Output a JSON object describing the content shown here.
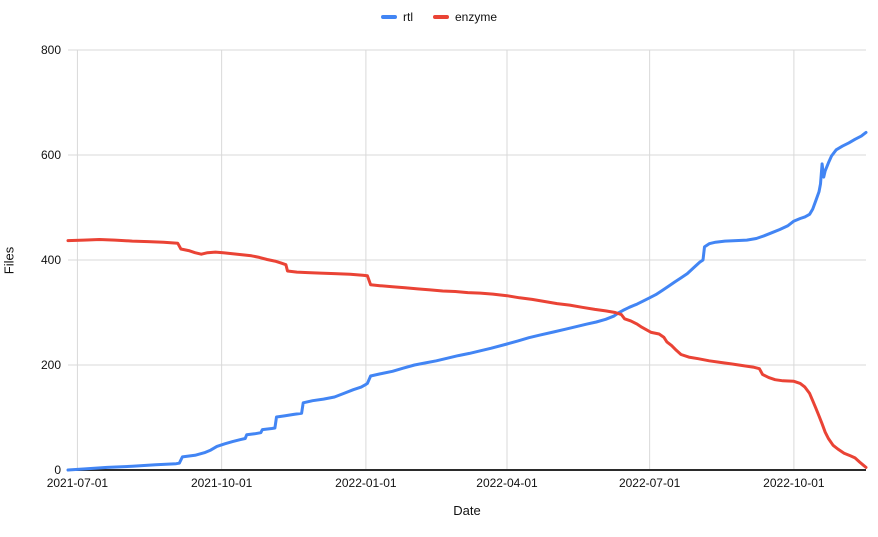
{
  "chart_data": {
    "type": "line",
    "title": "",
    "xlabel": "Date",
    "ylabel": "Files",
    "x_domain": [
      "2021-06-25",
      "2022-11-16"
    ],
    "ylim": [
      0,
      800
    ],
    "x_ticks": [
      "2021-07-01",
      "2021-10-01",
      "2022-01-01",
      "2022-04-01",
      "2022-07-01",
      "2022-10-01"
    ],
    "y_ticks": [
      0,
      200,
      400,
      600,
      800
    ],
    "grid": "on",
    "legend_position": "top-center",
    "grid_color": "#d9d9d9",
    "axis_color": "#2b2b2b",
    "text_color": "#111111",
    "line_width": 3,
    "series": [
      {
        "name": "rtl",
        "color": "#4285F4",
        "points": [
          [
            "2021-06-25",
            0
          ],
          [
            "2021-07-06",
            2
          ],
          [
            "2021-07-20",
            5
          ],
          [
            "2021-08-05",
            7
          ],
          [
            "2021-08-20",
            10
          ],
          [
            "2021-09-02",
            12
          ],
          [
            "2021-09-04",
            13
          ],
          [
            "2021-09-06",
            25
          ],
          [
            "2021-09-14",
            28
          ],
          [
            "2021-09-20",
            33
          ],
          [
            "2021-09-24",
            38
          ],
          [
            "2021-09-28",
            45
          ],
          [
            "2021-10-03",
            50
          ],
          [
            "2021-10-08",
            54
          ],
          [
            "2021-10-13",
            58
          ],
          [
            "2021-10-16",
            60
          ],
          [
            "2021-10-17",
            67
          ],
          [
            "2021-10-22",
            69
          ],
          [
            "2021-10-26",
            71
          ],
          [
            "2021-10-27",
            77
          ],
          [
            "2021-11-02",
            79
          ],
          [
            "2021-11-04",
            80
          ],
          [
            "2021-11-05",
            101
          ],
          [
            "2021-11-10",
            103
          ],
          [
            "2021-11-16",
            106
          ],
          [
            "2021-11-21",
            108
          ],
          [
            "2021-11-22",
            128
          ],
          [
            "2021-11-28",
            132
          ],
          [
            "2021-12-05",
            135
          ],
          [
            "2021-12-12",
            139
          ],
          [
            "2021-12-18",
            146
          ],
          [
            "2021-12-24",
            153
          ],
          [
            "2021-12-29",
            158
          ],
          [
            "2022-01-01",
            163
          ],
          [
            "2022-01-02",
            165
          ],
          [
            "2022-01-04",
            179
          ],
          [
            "2022-01-10",
            183
          ],
          [
            "2022-01-18",
            188
          ],
          [
            "2022-01-25",
            194
          ],
          [
            "2022-02-01",
            200
          ],
          [
            "2022-02-08",
            204
          ],
          [
            "2022-02-15",
            208
          ],
          [
            "2022-02-22",
            213
          ],
          [
            "2022-03-01",
            218
          ],
          [
            "2022-03-08",
            222
          ],
          [
            "2022-03-15",
            227
          ],
          [
            "2022-03-22",
            232
          ],
          [
            "2022-04-01",
            240
          ],
          [
            "2022-04-08",
            246
          ],
          [
            "2022-04-15",
            252
          ],
          [
            "2022-04-22",
            257
          ],
          [
            "2022-05-01",
            263
          ],
          [
            "2022-05-08",
            268
          ],
          [
            "2022-05-15",
            273
          ],
          [
            "2022-05-22",
            278
          ],
          [
            "2022-05-28",
            282
          ],
          [
            "2022-06-03",
            287
          ],
          [
            "2022-06-08",
            293
          ],
          [
            "2022-06-11",
            299
          ],
          [
            "2022-06-14",
            304
          ],
          [
            "2022-06-18",
            310
          ],
          [
            "2022-06-23",
            316
          ],
          [
            "2022-06-27",
            322
          ],
          [
            "2022-07-01",
            328
          ],
          [
            "2022-07-05",
            334
          ],
          [
            "2022-07-09",
            342
          ],
          [
            "2022-07-13",
            350
          ],
          [
            "2022-07-17",
            358
          ],
          [
            "2022-07-21",
            366
          ],
          [
            "2022-07-25",
            374
          ],
          [
            "2022-07-29",
            385
          ],
          [
            "2022-08-02",
            396
          ],
          [
            "2022-08-04",
            400
          ],
          [
            "2022-08-05",
            425
          ],
          [
            "2022-08-08",
            431
          ],
          [
            "2022-08-12",
            434
          ],
          [
            "2022-08-18",
            436
          ],
          [
            "2022-08-25",
            437
          ],
          [
            "2022-09-01",
            438
          ],
          [
            "2022-09-07",
            441
          ],
          [
            "2022-09-12",
            446
          ],
          [
            "2022-09-17",
            452
          ],
          [
            "2022-09-22",
            458
          ],
          [
            "2022-09-27",
            465
          ],
          [
            "2022-10-01",
            474
          ],
          [
            "2022-10-05",
            479
          ],
          [
            "2022-10-08",
            482
          ],
          [
            "2022-10-11",
            487
          ],
          [
            "2022-10-13",
            497
          ],
          [
            "2022-10-15",
            513
          ],
          [
            "2022-10-17",
            530
          ],
          [
            "2022-10-18",
            545
          ],
          [
            "2022-10-19",
            583
          ],
          [
            "2022-10-20",
            558
          ],
          [
            "2022-10-21",
            570
          ],
          [
            "2022-10-23",
            585
          ],
          [
            "2022-10-25",
            598
          ],
          [
            "2022-10-28",
            610
          ],
          [
            "2022-11-01",
            617
          ],
          [
            "2022-11-05",
            623
          ],
          [
            "2022-11-09",
            630
          ],
          [
            "2022-11-13",
            636
          ],
          [
            "2022-11-16",
            643
          ]
        ]
      },
      {
        "name": "enzyme",
        "color": "#EA4335",
        "points": [
          [
            "2021-06-25",
            437
          ],
          [
            "2021-07-05",
            438
          ],
          [
            "2021-07-15",
            439
          ],
          [
            "2021-07-25",
            438
          ],
          [
            "2021-08-05",
            436
          ],
          [
            "2021-08-15",
            435
          ],
          [
            "2021-08-25",
            434
          ],
          [
            "2021-09-03",
            432
          ],
          [
            "2021-09-05",
            421
          ],
          [
            "2021-09-10",
            418
          ],
          [
            "2021-09-14",
            414
          ],
          [
            "2021-09-18",
            411
          ],
          [
            "2021-09-22",
            414
          ],
          [
            "2021-09-27",
            415
          ],
          [
            "2021-10-02",
            414
          ],
          [
            "2021-10-08",
            412
          ],
          [
            "2021-10-14",
            410
          ],
          [
            "2021-10-20",
            408
          ],
          [
            "2021-10-25",
            405
          ],
          [
            "2021-10-30",
            401
          ],
          [
            "2021-11-04",
            398
          ],
          [
            "2021-11-08",
            394
          ],
          [
            "2021-11-11",
            391
          ],
          [
            "2021-11-12",
            379
          ],
          [
            "2021-11-18",
            377
          ],
          [
            "2021-11-25",
            376
          ],
          [
            "2021-12-03",
            375
          ],
          [
            "2021-12-12",
            374
          ],
          [
            "2021-12-22",
            373
          ],
          [
            "2021-12-30",
            371
          ],
          [
            "2022-01-02",
            370
          ],
          [
            "2022-01-04",
            353
          ],
          [
            "2022-01-10",
            351
          ],
          [
            "2022-01-18",
            349
          ],
          [
            "2022-01-26",
            347
          ],
          [
            "2022-02-03",
            345
          ],
          [
            "2022-02-11",
            343
          ],
          [
            "2022-02-19",
            341
          ],
          [
            "2022-02-27",
            340
          ],
          [
            "2022-03-07",
            338
          ],
          [
            "2022-03-15",
            337
          ],
          [
            "2022-03-23",
            335
          ],
          [
            "2022-04-01",
            332
          ],
          [
            "2022-04-09",
            328
          ],
          [
            "2022-04-17",
            325
          ],
          [
            "2022-04-25",
            321
          ],
          [
            "2022-05-03",
            317
          ],
          [
            "2022-05-11",
            314
          ],
          [
            "2022-05-19",
            310
          ],
          [
            "2022-05-27",
            306
          ],
          [
            "2022-06-03",
            303
          ],
          [
            "2022-06-09",
            300
          ],
          [
            "2022-06-13",
            296
          ],
          [
            "2022-06-15",
            288
          ],
          [
            "2022-06-19",
            284
          ],
          [
            "2022-06-23",
            278
          ],
          [
            "2022-06-26",
            272
          ],
          [
            "2022-06-29",
            267
          ],
          [
            "2022-07-02",
            262
          ],
          [
            "2022-07-07",
            259
          ],
          [
            "2022-07-10",
            253
          ],
          [
            "2022-07-12",
            244
          ],
          [
            "2022-07-15",
            237
          ],
          [
            "2022-07-18",
            228
          ],
          [
            "2022-07-21",
            220
          ],
          [
            "2022-07-26",
            215
          ],
          [
            "2022-08-01",
            212
          ],
          [
            "2022-08-08",
            208
          ],
          [
            "2022-08-15",
            205
          ],
          [
            "2022-08-22",
            202
          ],
          [
            "2022-08-29",
            199
          ],
          [
            "2022-09-05",
            196
          ],
          [
            "2022-09-09",
            193
          ],
          [
            "2022-09-11",
            182
          ],
          [
            "2022-09-15",
            176
          ],
          [
            "2022-09-19",
            172
          ],
          [
            "2022-09-24",
            170
          ],
          [
            "2022-10-01",
            169
          ],
          [
            "2022-10-05",
            165
          ],
          [
            "2022-10-08",
            158
          ],
          [
            "2022-10-11",
            146
          ],
          [
            "2022-10-13",
            132
          ],
          [
            "2022-10-15",
            118
          ],
          [
            "2022-10-17",
            103
          ],
          [
            "2022-10-19",
            88
          ],
          [
            "2022-10-21",
            72
          ],
          [
            "2022-10-23",
            60
          ],
          [
            "2022-10-26",
            47
          ],
          [
            "2022-10-29",
            40
          ],
          [
            "2022-11-02",
            32
          ],
          [
            "2022-11-06",
            27
          ],
          [
            "2022-11-09",
            23
          ],
          [
            "2022-11-12",
            15
          ],
          [
            "2022-11-14",
            10
          ],
          [
            "2022-11-16",
            5
          ]
        ]
      }
    ]
  }
}
